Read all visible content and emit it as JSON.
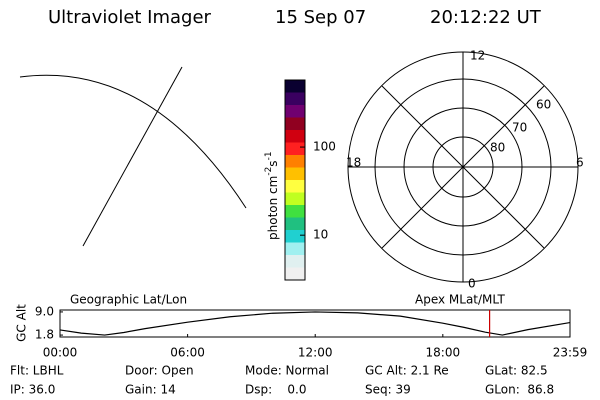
{
  "header": {
    "instrument": "Ultraviolet Imager",
    "date": "15 Sep 07",
    "time": "20:12:22 UT"
  },
  "colorbar": {
    "label": "photon cm",
    "exp1": "-2",
    "unit2": "s",
    "exp2": "-1",
    "log": true,
    "clim": [
      3.1,
      577
    ],
    "ticks": [
      10,
      100
    ]
  },
  "polar": {
    "top": "12",
    "bottom": "0",
    "left": "18",
    "right": "6",
    "rings": [
      "60",
      "70",
      "80"
    ]
  },
  "chart_data": {
    "type": "line",
    "ylabel": "GC Alt",
    "left_title": "Geographic Lat/Lon",
    "right_title": "Apex MLat/MLT",
    "x": [
      0,
      1,
      2.1,
      3,
      4,
      6,
      8,
      10,
      12,
      14,
      16,
      18,
      19,
      20,
      20.8,
      22,
      23.98
    ],
    "series": [
      {
        "color": "#000000",
        "values": [
          3.4,
          2.4,
          1.8,
          2.6,
          3.8,
          5.8,
          7.5,
          8.6,
          9.0,
          8.7,
          7.7,
          5.5,
          4.2,
          2.7,
          1.8,
          3.5,
          5.7
        ]
      }
    ],
    "xlim": [
      0,
      23.98
    ],
    "xticks": [
      {
        "value": 0,
        "label": "00:00"
      },
      {
        "value": 6,
        "label": "06:00"
      },
      {
        "value": 12,
        "label": "12:00"
      },
      {
        "value": 18,
        "label": "18:00"
      },
      {
        "value": 23.98,
        "label": "23:59"
      }
    ],
    "ylim": [
      1.2,
      9.6
    ],
    "yticks": [
      {
        "value": 1.8,
        "label": "1.8"
      },
      {
        "value": 9.0,
        "label": "9.0"
      }
    ],
    "marker_x": 20.2,
    "marker_color": "#cc0000"
  },
  "info": {
    "rows": [
      [
        "Flt: LBHL",
        "Door: Open",
        "Mode: Normal",
        "GC Alt: 2.1 Re",
        "GLat: 82.5"
      ],
      [
        "IP: 36.0",
        "Gain: 14",
        "Dsp:    0.0",
        "Seq: 39",
        "GLon:  86.8"
      ]
    ]
  }
}
